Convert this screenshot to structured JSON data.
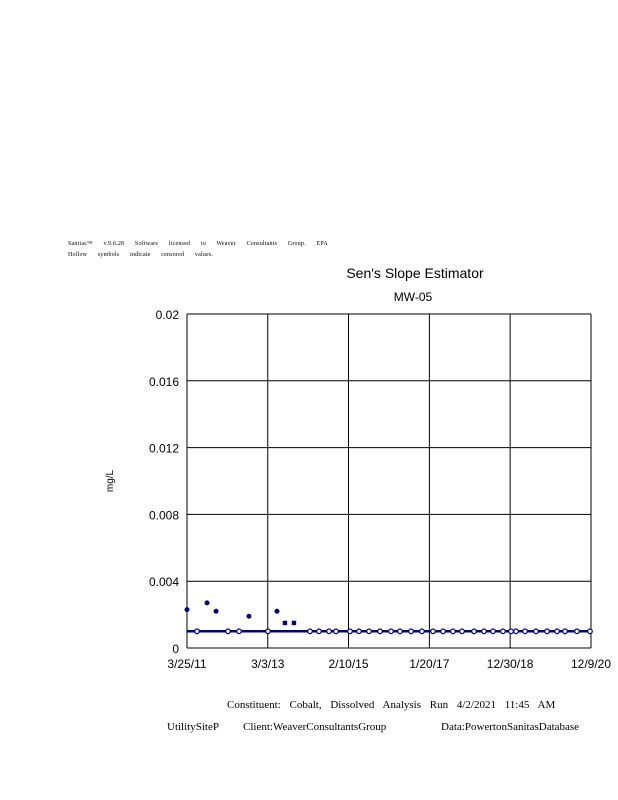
{
  "header": {
    "line1": "Sanitas™ v.9.6.28 Software licensed to Weaver Consultants Group. EPA",
    "line2": "Hollow symbols indicate censored values."
  },
  "chart_data": {
    "type": "scatter",
    "title": "Sen's Slope Estimator",
    "subtitle": "MW-05",
    "ylabel": "mg/L",
    "xlabel": "",
    "ylim": [
      0,
      0.02
    ],
    "xlim": [
      "2011-03-25",
      "2020-12-09"
    ],
    "yticks": [
      "0",
      "0.004",
      "0.008",
      "0.012",
      "0.016",
      "0.02"
    ],
    "xticks": [
      {
        "date": "2011-03-25",
        "label": "3/25/11"
      },
      {
        "date": "2013-03-03",
        "label": "3/3/13"
      },
      {
        "date": "2015-02-10",
        "label": "2/10/15"
      },
      {
        "date": "2017-01-20",
        "label": "1/20/17"
      },
      {
        "date": "2018-12-30",
        "label": "12/30/18"
      },
      {
        "date": "2020-12-09",
        "label": "12/9/20"
      }
    ],
    "grid": true,
    "colors": {
      "series": "#000080",
      "grid": "#000000"
    },
    "detected": [
      {
        "x": "2011-03-25",
        "y": 0.0023,
        "marker": "dot"
      },
      {
        "x": "2011-09-17",
        "y": 0.0027,
        "marker": "dot"
      },
      {
        "x": "2011-12-05",
        "y": 0.0022,
        "marker": "dot"
      },
      {
        "x": "2012-09-19",
        "y": 0.0019,
        "marker": "dot"
      },
      {
        "x": "2013-05-23",
        "y": 0.0022,
        "marker": "dot"
      },
      {
        "x": "2013-08-01",
        "y": 0.0015,
        "marker": "square"
      },
      {
        "x": "2013-10-19",
        "y": 0.0015,
        "marker": "square"
      }
    ],
    "censored": {
      "y": 0.001,
      "x": [
        "2011-06-21",
        "2012-03-19",
        "2012-06-24",
        "2013-03-05",
        "2014-03-09",
        "2014-05-27",
        "2014-08-23",
        "2014-10-23",
        "2015-02-23",
        "2015-05-13",
        "2015-08-09",
        "2015-11-14",
        "2016-02-18",
        "2016-05-07",
        "2016-08-12",
        "2016-11-16",
        "2017-02-21",
        "2017-05-20",
        "2017-08-15",
        "2017-11-03",
        "2018-02-16",
        "2018-05-15",
        "2018-08-02",
        "2018-10-28",
        "2019-01-07",
        "2019-02-20",
        "2019-05-10",
        "2019-08-14",
        "2019-11-19",
        "2020-02-15",
        "2020-04-25",
        "2020-08-08",
        "2020-11-30"
      ]
    },
    "trend_line": {
      "start": {
        "x": "2011-03-25",
        "y": 0.001
      },
      "end": {
        "x": "2020-12-09",
        "y": 0.001
      }
    }
  },
  "footer": {
    "line1": "Constituent: Cobalt, Dissolved Analysis Run 4/2/2021 11:45 AM",
    "site": "UtilitySiteP",
    "client": "Client:WeaverConsultantsGroup",
    "data": "Data:PowertonSanitasDatabase"
  }
}
